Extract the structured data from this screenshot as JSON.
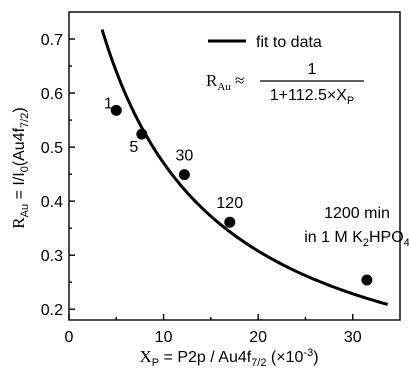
{
  "chart_data": {
    "type": "scatter",
    "title": "",
    "xlim": [
      0,
      35
    ],
    "ylim": [
      0.18,
      0.75
    ],
    "x_ticks": [
      0,
      10,
      20,
      30
    ],
    "y_ticks": [
      0.2,
      0.3,
      0.4,
      0.5,
      0.6,
      0.7
    ],
    "x_tick_labels": [
      "0",
      "10",
      "20",
      "30"
    ],
    "y_tick_labels": [
      "0.2",
      "0.3",
      "0.4",
      "0.5",
      "0.6",
      "0.7"
    ],
    "xlabel": {
      "main": "X",
      "main_sub": "P",
      "eq": " = P2p / Au4f",
      "eq_sub": "7/2",
      "units": " (×10",
      "units_sup": "-3",
      "units_end": ")"
    },
    "ylabel": {
      "main": "R",
      "main_sub": "Au",
      "eq": " = I/I",
      "eq_sub": "0",
      "end": "(Au4f",
      "end_sub": "7/2",
      "close": ")"
    },
    "series": [
      {
        "points": [
          {
            "x": 5.0,
            "y": 0.568,
            "label": "1"
          },
          {
            "x": 7.7,
            "y": 0.524,
            "label": "5"
          },
          {
            "x": 12.2,
            "y": 0.449,
            "label": "30"
          },
          {
            "x": 17.0,
            "y": 0.361,
            "label": "120"
          },
          {
            "x": 31.5,
            "y": 0.254,
            "label": ""
          }
        ]
      }
    ],
    "fit": {
      "a": 112.5,
      "scale": 0.001,
      "x_range": [
        3.5,
        33.7
      ]
    },
    "legend": {
      "label": "fit to data",
      "position": "top-right"
    },
    "annotations": {
      "formula_lhs": "R",
      "formula_lhs_sub": "Au",
      "formula_approx": " ≈",
      "formula_numerator": "1",
      "formula_denominator": "1+112.5×X",
      "formula_denominator_sub": "P",
      "time_label": "1200 min",
      "solution_label": "in 1 M K",
      "solution_sub1": "2",
      "solution_mid": "HPO",
      "solution_sub2": "4"
    }
  }
}
